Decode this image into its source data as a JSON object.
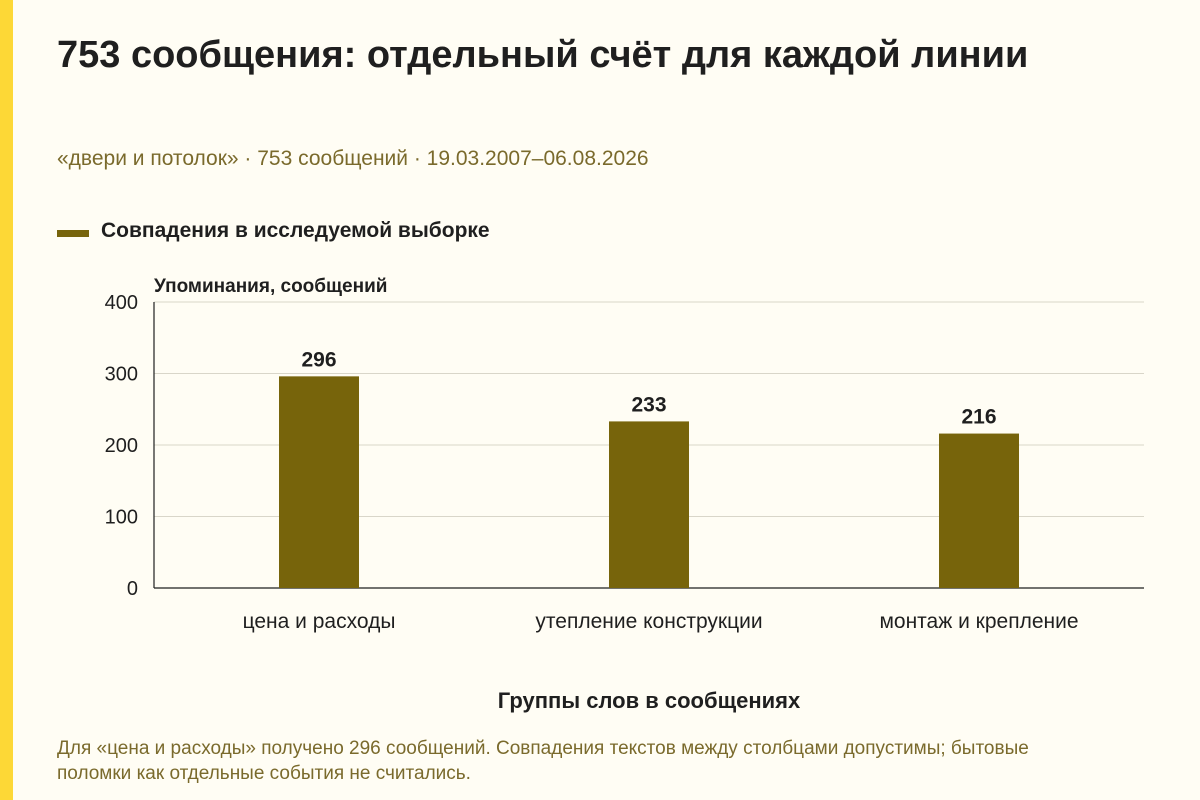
{
  "colors": {
    "accent_strip": "#fdd836",
    "bar": "#77640b",
    "grid": "#d9d6c9",
    "subtitle": "#7a6a2c"
  },
  "title": "753 сообщения: отдельный счёт для каждой линии",
  "subtitle": "«двери и потолок» · 753 сообщений · 19.03.2007–06.08.2026",
  "legend": {
    "label": "Совпадения в исследуемой выборке"
  },
  "chart_data": {
    "type": "bar",
    "categories": [
      "цена и расходы",
      "утепление конструкции",
      "монтаж и крепление"
    ],
    "series": [
      {
        "name": "Совпадения в исследуемой выборке",
        "values": [
          296,
          233,
          216
        ]
      }
    ],
    "ylabel": "Упоминания, сообщений",
    "xlabel": "Группы слов в сообщениях",
    "ylim": [
      0,
      400
    ],
    "yticks": [
      0,
      100,
      200,
      300,
      400
    ],
    "grid": true,
    "legend_position": "top-left"
  },
  "footnote": "Для «цена и расходы» получено 296 сообщений. Совпадения текстов между столбцами допустимы; бытовые поломки как отдельные события не считались."
}
